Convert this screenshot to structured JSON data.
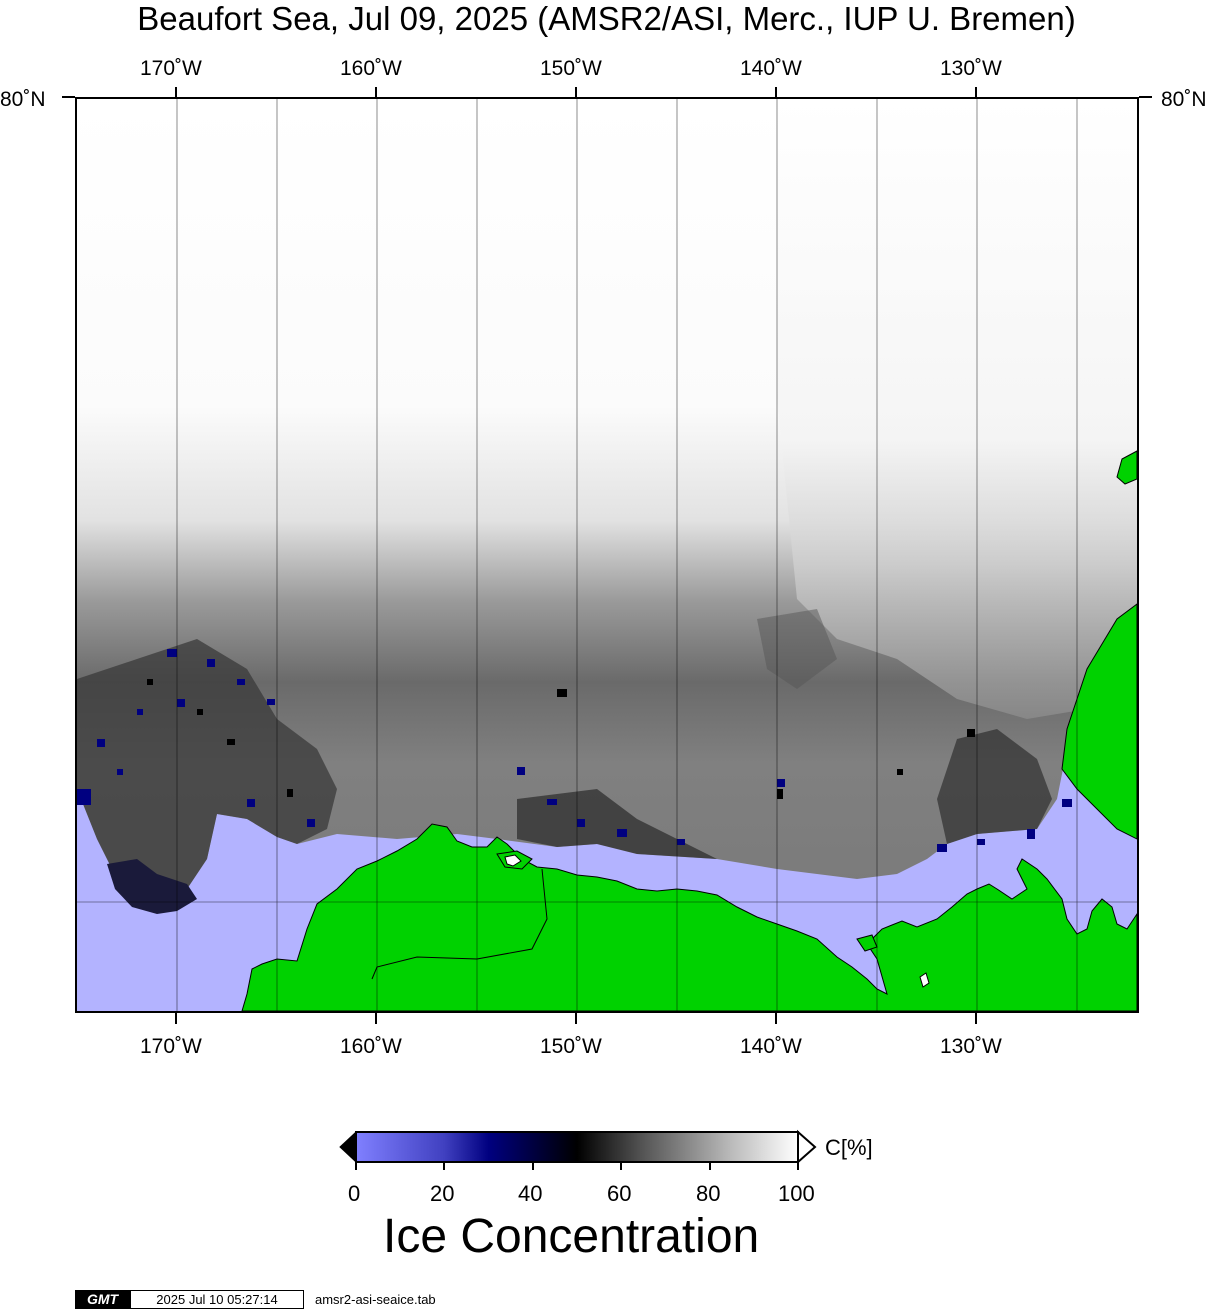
{
  "title": "Beaufort Sea, Jul 09, 2025 (AMSR2/ASI, Merc., IUP U. Bremen)",
  "lon_labels": [
    "170˚W",
    "160˚W",
    "150˚W",
    "140˚W",
    "130˚W"
  ],
  "lat_label": "80˚N",
  "colors": {
    "open_water": "#b3b3ff",
    "land": "#00d200",
    "ice_low": "#8080ff",
    "ice_mid_blue": "#000080",
    "ice_black": "#000000",
    "ice_full": "#ffffff"
  },
  "colorbar": {
    "unit": "C[%]",
    "ticks": [
      "0",
      "20",
      "40",
      "60",
      "80",
      "100"
    ],
    "title": "Ice Concentration"
  },
  "footer": {
    "logo": "GMT",
    "timestamp": "2025 Jul 10 05:27:14",
    "file": "amsr2-asi-seaice.tab"
  }
}
